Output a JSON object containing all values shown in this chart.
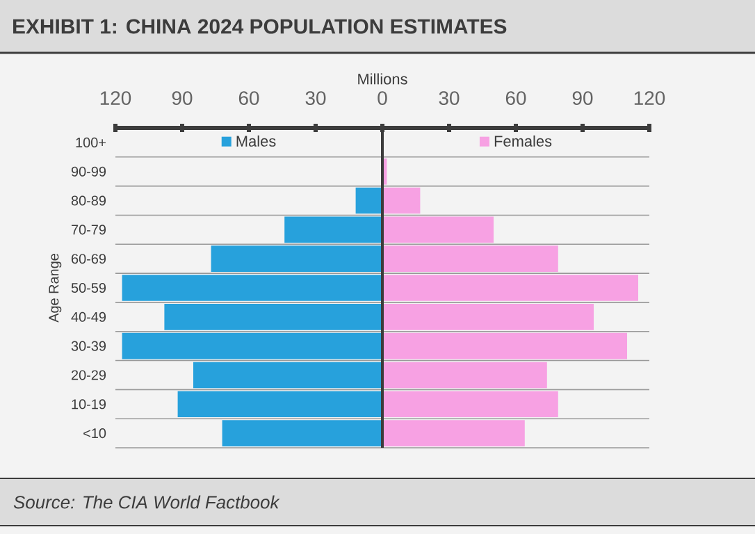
{
  "chart_data": {
    "type": "bar",
    "orientation": "horizontal",
    "stacked": true,
    "title": "EXHIBIT 1: CHINA 2024 POPULATION ESTIMATES",
    "xlabel": "Millions",
    "ylabel": "Age Range",
    "categories": [
      "100+",
      "90-99",
      "80-89",
      "70-79",
      "60-69",
      "50-59",
      "40-49",
      "30-39",
      "20-29",
      "10-19",
      "<10"
    ],
    "series": [
      {
        "name": "Males",
        "color": "#27a1dc",
        "values": [
          null,
          null,
          -12,
          -44,
          -77,
          -117,
          -98,
          -117,
          -85,
          -92,
          -72
        ]
      },
      {
        "name": "Females",
        "color": "#f7a1e3",
        "values": [
          null,
          2,
          17,
          50,
          79,
          115,
          95,
          110,
          74,
          79,
          64
        ]
      }
    ],
    "xlim": [
      -120,
      120
    ],
    "xticks": [
      {
        "value": -120,
        "label": "120"
      },
      {
        "value": -90,
        "label": "90"
      },
      {
        "value": -60,
        "label": "60"
      },
      {
        "value": -30,
        "label": "30"
      },
      0,
      30,
      60,
      90,
      120
    ],
    "grid": "y",
    "legend": "top",
    "annotations": [
      "Source: The CIA World Factbook"
    ]
  }
}
